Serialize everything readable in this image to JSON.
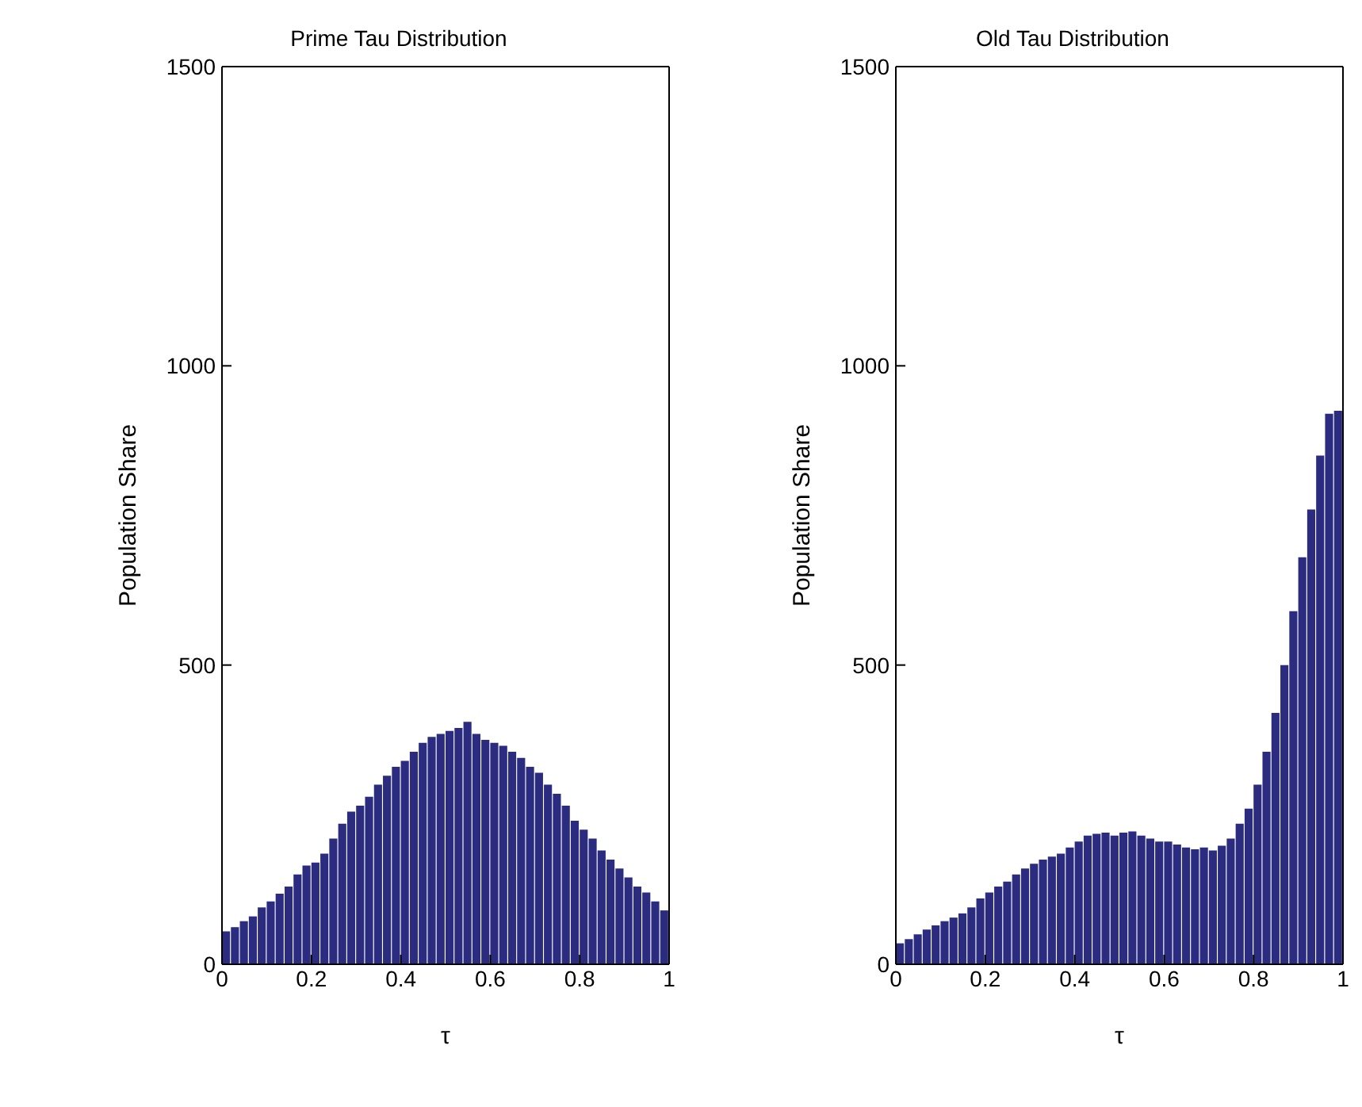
{
  "chart_data": [
    {
      "type": "histogram",
      "title": "Prime Tau Distribution",
      "xlabel": "τ",
      "ylabel": "Population Share",
      "color": "#2b2b7f",
      "bins": [
        0,
        0.02,
        0.04,
        0.06,
        0.08,
        0.1,
        0.12,
        0.14,
        0.16,
        0.18,
        0.2,
        0.22,
        0.24,
        0.26,
        0.28,
        0.3,
        0.32,
        0.34,
        0.36,
        0.38,
        0.4,
        0.42,
        0.44,
        0.46,
        0.48,
        0.5,
        0.52,
        0.54,
        0.56,
        0.58,
        0.6,
        0.62,
        0.64,
        0.66,
        0.68,
        0.7,
        0.72,
        0.74,
        0.76,
        0.78,
        0.8,
        0.82,
        0.84,
        0.86,
        0.88,
        0.9,
        0.92,
        0.94,
        0.96,
        0.98,
        1
      ],
      "values": [
        55,
        62,
        72,
        80,
        95,
        105,
        118,
        130,
        150,
        165,
        170,
        185,
        210,
        235,
        255,
        265,
        280,
        300,
        315,
        330,
        340,
        355,
        370,
        380,
        385,
        390,
        395,
        405,
        385,
        375,
        370,
        365,
        355,
        345,
        330,
        320,
        300,
        285,
        265,
        240,
        225,
        210,
        190,
        175,
        160,
        145,
        130,
        120,
        105,
        90
      ],
      "xlim": [
        0,
        1
      ],
      "xticks": [
        0,
        0.2,
        0.4,
        0.6,
        0.8,
        1
      ],
      "ylim": [
        0,
        1500
      ],
      "yticks": [
        0,
        500,
        1000,
        1500
      ],
      "grid": false
    },
    {
      "type": "histogram",
      "title": "Old Tau Distribution",
      "xlabel": "τ",
      "ylabel": "Population Share",
      "color": "#2b2b7f",
      "bins": [
        0,
        0.02,
        0.04,
        0.06,
        0.08,
        0.1,
        0.12,
        0.14,
        0.16,
        0.18,
        0.2,
        0.22,
        0.24,
        0.26,
        0.28,
        0.3,
        0.32,
        0.34,
        0.36,
        0.38,
        0.4,
        0.42,
        0.44,
        0.46,
        0.48,
        0.5,
        0.52,
        0.54,
        0.56,
        0.58,
        0.6,
        0.62,
        0.64,
        0.66,
        0.68,
        0.7,
        0.72,
        0.74,
        0.76,
        0.78,
        0.8,
        0.82,
        0.84,
        0.86,
        0.88,
        0.9,
        0.92,
        0.94,
        0.96,
        0.98,
        1
      ],
      "values": [
        35,
        42,
        50,
        58,
        65,
        72,
        78,
        85,
        95,
        110,
        120,
        130,
        138,
        150,
        160,
        168,
        175,
        180,
        185,
        195,
        205,
        215,
        218,
        220,
        215,
        220,
        222,
        215,
        210,
        205,
        205,
        200,
        195,
        192,
        195,
        190,
        198,
        210,
        235,
        260,
        300,
        355,
        420,
        500,
        590,
        680,
        760,
        850,
        920,
        925
      ],
      "xlim": [
        0,
        1
      ],
      "xticks": [
        0,
        0.2,
        0.4,
        0.6,
        0.8,
        1
      ],
      "ylim": [
        0,
        1500
      ],
      "yticks": [
        0,
        500,
        1000,
        1500
      ],
      "grid": false
    }
  ]
}
